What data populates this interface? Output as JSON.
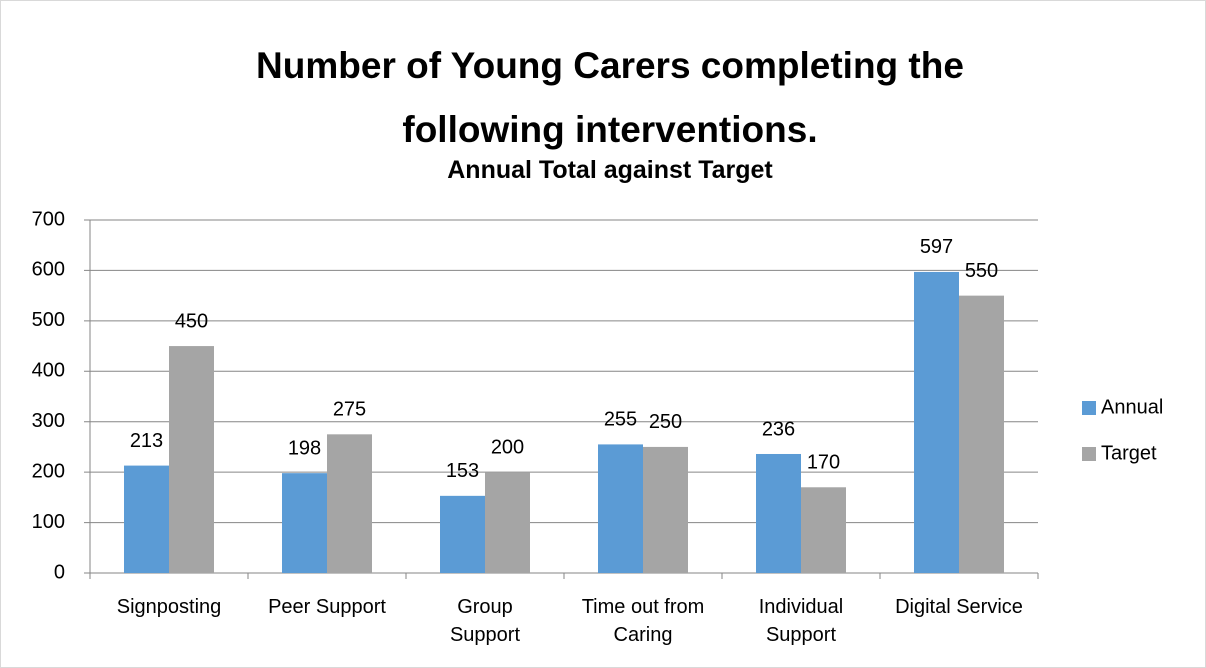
{
  "chart_data": {
    "type": "bar",
    "title": "Number of Young Carers completing the following interventions.",
    "subtitle": "Annual Total against Target",
    "categories": [
      "Signposting",
      "Peer Support",
      "Group\nSupport",
      "Time out from\nCaring",
      "Individual\nSupport",
      "Digital Service"
    ],
    "series": [
      {
        "name": "Annual",
        "color": "#5b9bd5",
        "values": [
          213,
          198,
          153,
          255,
          236,
          597
        ]
      },
      {
        "name": "Target",
        "color": "#a5a5a5",
        "values": [
          450,
          275,
          200,
          250,
          170,
          550
        ]
      }
    ],
    "ylim": [
      0,
      700
    ],
    "yticks": [
      0,
      100,
      200,
      300,
      400,
      500,
      600,
      700
    ],
    "grid": true,
    "legend": "right"
  }
}
